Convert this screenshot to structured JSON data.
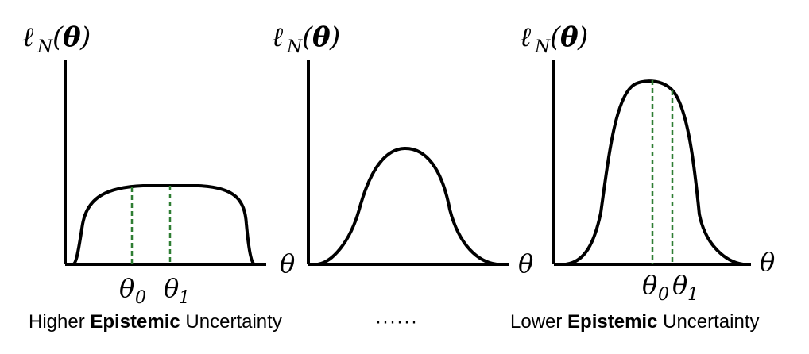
{
  "panels": [
    {
      "ylabel": {
        "ell": "ℓ",
        "sub": "N",
        "theta": "θ"
      },
      "xlabel": "",
      "markers": [
        {
          "symbol": "θ",
          "sub": "0"
        },
        {
          "symbol": "θ",
          "sub": "1"
        }
      ]
    },
    {
      "ylabel": {
        "ell": "ℓ",
        "sub": "N",
        "theta": "θ"
      },
      "xlabel": "θ",
      "markers": []
    },
    {
      "ylabel": {
        "ell": "ℓ",
        "sub": "N",
        "theta": "θ"
      },
      "xlabel": "θ",
      "markers": [
        {
          "symbol": "θ",
          "sub": "0"
        },
        {
          "symbol": "θ",
          "sub": "1"
        }
      ]
    }
  ],
  "left_xlabel": "θ",
  "captions": {
    "left": {
      "pre": "Higher ",
      "bold": "Epistemic",
      "post": " Uncertainty"
    },
    "middle": "······",
    "right": {
      "pre": "Lower ",
      "bold": "Epistemic",
      "post": " Uncertainty"
    }
  },
  "colors": {
    "curve": "#000000",
    "axis": "#000000",
    "marker_line": "#2e7d32"
  }
}
